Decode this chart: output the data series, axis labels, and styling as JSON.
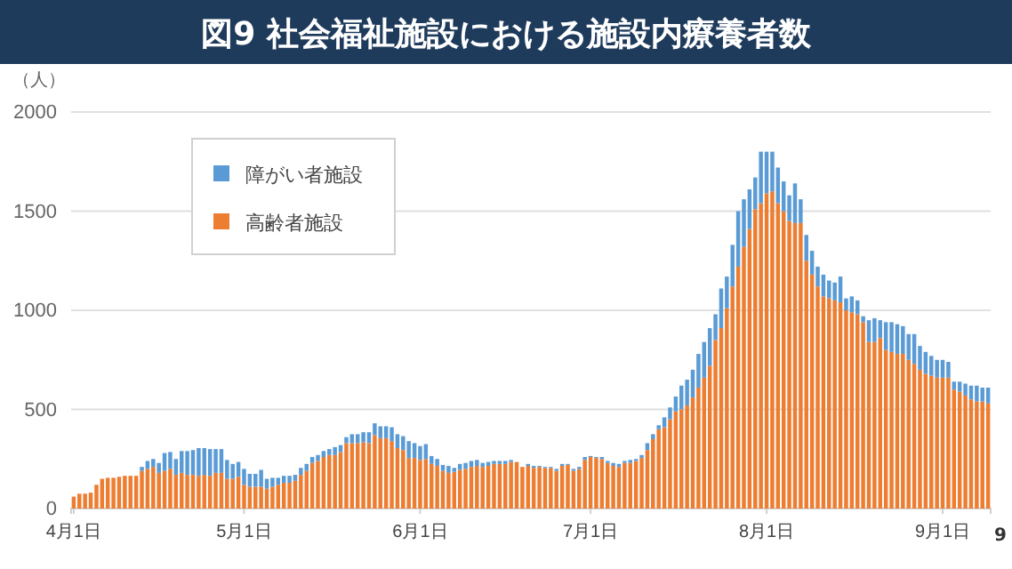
{
  "chart_data": {
    "type": "bar",
    "stacked": true,
    "title": "図9 社会福祉施設における施設内療養者数",
    "ylabel": "（人）",
    "annotations": [
      "9"
    ],
    "categories": [
      "4月1日",
      null,
      null,
      null,
      null,
      null,
      null,
      null,
      null,
      null,
      null,
      null,
      null,
      null,
      null,
      null,
      null,
      null,
      null,
      null,
      null,
      null,
      null,
      null,
      null,
      null,
      null,
      null,
      null,
      null,
      "5月1日",
      null,
      null,
      null,
      null,
      null,
      null,
      null,
      null,
      null,
      null,
      null,
      null,
      null,
      null,
      null,
      null,
      null,
      null,
      null,
      null,
      null,
      null,
      null,
      null,
      null,
      null,
      null,
      null,
      null,
      null,
      "6月1日",
      null,
      null,
      null,
      null,
      null,
      null,
      null,
      null,
      null,
      null,
      null,
      null,
      null,
      null,
      null,
      null,
      null,
      null,
      null,
      null,
      null,
      null,
      null,
      null,
      null,
      null,
      null,
      null,
      null,
      "7月1日",
      null,
      null,
      null,
      null,
      null,
      null,
      null,
      null,
      null,
      null,
      null,
      null,
      null,
      null,
      null,
      null,
      null,
      null,
      null,
      null,
      null,
      null,
      null,
      null,
      null,
      null,
      null,
      null,
      null,
      null,
      "8月1日",
      null,
      null,
      null,
      null,
      null,
      null,
      null,
      null,
      null,
      null,
      null,
      null,
      null,
      null,
      null,
      null,
      null,
      null,
      null,
      null,
      null,
      null,
      null,
      null,
      null,
      null,
      null,
      null,
      null,
      null,
      "9月1日",
      null,
      null,
      null,
      null,
      null,
      null,
      null,
      null
    ],
    "series": [
      {
        "name": "高齢者施設",
        "color": "#ed7d31",
        "values": [
          60,
          75,
          75,
          80,
          120,
          150,
          155,
          155,
          160,
          165,
          165,
          165,
          190,
          200,
          210,
          180,
          190,
          200,
          170,
          180,
          170,
          170,
          165,
          170,
          165,
          180,
          180,
          150,
          150,
          160,
          120,
          110,
          110,
          110,
          100,
          110,
          120,
          130,
          130,
          140,
          170,
          190,
          230,
          240,
          260,
          270,
          270,
          285,
          330,
          330,
          330,
          335,
          330,
          370,
          355,
          355,
          340,
          305,
          295,
          255,
          255,
          245,
          250,
          225,
          215,
          190,
          180,
          185,
          195,
          200,
          210,
          215,
          210,
          215,
          225,
          225,
          225,
          235,
          235,
          210,
          215,
          205,
          210,
          205,
          205,
          190,
          215,
          220,
          190,
          200,
          245,
          260,
          255,
          250,
          230,
          215,
          210,
          230,
          230,
          240,
          255,
          295,
          350,
          400,
          410,
          450,
          490,
          500,
          520,
          560,
          610,
          660,
          720,
          850,
          910,
          1010,
          1120,
          1220,
          1320,
          1410,
          1510,
          1540,
          1590,
          1600,
          1540,
          1500,
          1450,
          1440,
          1440,
          1250,
          1180,
          1120,
          1070,
          1060,
          1050,
          1040,
          1000,
          990,
          980,
          940,
          840,
          840,
          860,
          800,
          790,
          780,
          780,
          750,
          730,
          700,
          680,
          670,
          660,
          660,
          660,
          600,
          590,
          570,
          550,
          540,
          540,
          530
        ]
      },
      {
        "name": "障がい者施設",
        "color": "#5b9bd5",
        "values": [
          0,
          0,
          0,
          0,
          0,
          0,
          0,
          0,
          0,
          0,
          0,
          0,
          20,
          40,
          40,
          50,
          90,
          85,
          80,
          110,
          120,
          125,
          140,
          135,
          135,
          120,
          120,
          95,
          75,
          75,
          80,
          65,
          65,
          85,
          50,
          45,
          35,
          35,
          35,
          30,
          35,
          35,
          30,
          30,
          30,
          30,
          40,
          35,
          30,
          45,
          45,
          50,
          55,
          60,
          60,
          60,
          70,
          70,
          70,
          85,
          75,
          70,
          75,
          40,
          35,
          30,
          35,
          20,
          30,
          30,
          30,
          30,
          20,
          20,
          15,
          15,
          15,
          10,
          0,
          0,
          10,
          10,
          5,
          5,
          5,
          10,
          10,
          5,
          10,
          10,
          15,
          5,
          5,
          10,
          10,
          15,
          15,
          10,
          15,
          10,
          15,
          35,
          25,
          20,
          50,
          60,
          75,
          120,
          130,
          140,
          170,
          180,
          190,
          130,
          200,
          160,
          210,
          280,
          240,
          200,
          160,
          260,
          210,
          200,
          180,
          150,
          130,
          200,
          120,
          130,
          120,
          100,
          110,
          90,
          90,
          130,
          60,
          80,
          70,
          30,
          110,
          120,
          90,
          140,
          150,
          150,
          140,
          130,
          150,
          120,
          110,
          100,
          90,
          90,
          80,
          40,
          50,
          60,
          70,
          80,
          70,
          80
        ]
      }
    ],
    "ylim": [
      0,
      2000
    ],
    "yticks": [
      0,
      500,
      1000,
      1500,
      2000
    ],
    "grid": "y",
    "legend": "top left"
  }
}
